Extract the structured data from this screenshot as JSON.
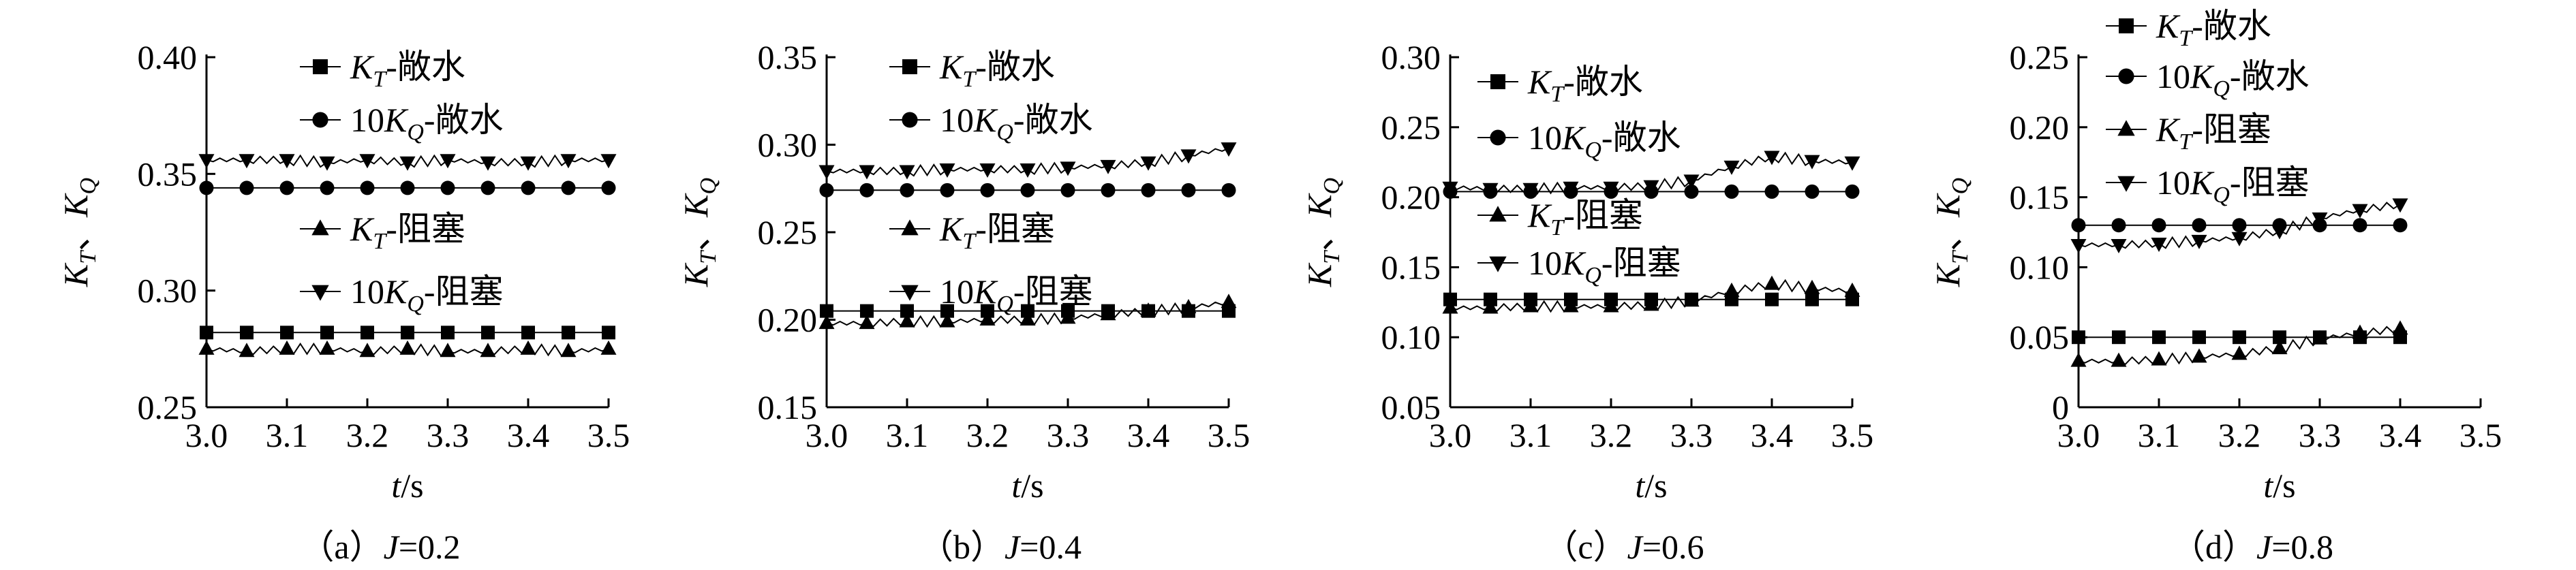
{
  "figure": {
    "series_defs": [
      {
        "name": "K_T-敞水",
        "main": "K",
        "sub": "T",
        "suffix": "-敞水",
        "marker": "square"
      },
      {
        "name": "10K_Q-敞水",
        "prefix": "10",
        "main": "K",
        "sub": "Q",
        "suffix": "-敞水",
        "marker": "circle"
      },
      {
        "name": "K_T-阻塞",
        "main": "K",
        "sub": "T",
        "suffix": "-阻塞",
        "marker": "triangle-up"
      },
      {
        "name": "10K_Q-阻塞",
        "prefix": "10",
        "main": "K",
        "sub": "Q",
        "suffix": "-阻塞",
        "marker": "triangle-down"
      }
    ],
    "ylabel_parts": {
      "k": "K",
      "t": "T",
      "sep": "、",
      "q": "Q"
    },
    "xlabel_parts": {
      "t": "t",
      "unit": "/s"
    }
  },
  "chart_data": [
    {
      "type": "line",
      "caption_prefix": "（a）",
      "caption_var": "J",
      "caption_value": "=0.2",
      "xlim": [
        3.0,
        3.5
      ],
      "ylim": [
        0.25,
        0.4
      ],
      "xticks": [
        "3.0",
        "3.1",
        "3.2",
        "3.3",
        "3.4",
        "3.5"
      ],
      "yticks": [
        "0.25",
        "0.30",
        "0.35",
        "0.40"
      ],
      "x": [
        3.0,
        3.05,
        3.1,
        3.15,
        3.2,
        3.25,
        3.3,
        3.35,
        3.4,
        3.45,
        3.5
      ],
      "series": [
        {
          "name": "K_T-敞水",
          "values": [
            0.282,
            0.282,
            0.282,
            0.282,
            0.282,
            0.282,
            0.282,
            0.282,
            0.282,
            0.282,
            0.282
          ]
        },
        {
          "name": "10K_Q-敞水",
          "values": [
            0.344,
            0.344,
            0.344,
            0.344,
            0.344,
            0.344,
            0.344,
            0.344,
            0.344,
            0.344,
            0.344
          ]
        },
        {
          "name": "K_T-阻塞",
          "values": [
            0.275,
            0.274,
            0.275,
            0.275,
            0.274,
            0.275,
            0.274,
            0.274,
            0.275,
            0.274,
            0.275
          ]
        },
        {
          "name": "10K_Q-阻塞",
          "values": [
            0.356,
            0.356,
            0.356,
            0.355,
            0.356,
            0.355,
            0.356,
            0.355,
            0.355,
            0.356,
            0.356
          ]
        }
      ]
    },
    {
      "type": "line",
      "caption_prefix": "（b）",
      "caption_var": "J",
      "caption_value": "=0.4",
      "xlim": [
        3.0,
        3.5
      ],
      "ylim": [
        0.15,
        0.35
      ],
      "xticks": [
        "3.0",
        "3.1",
        "3.2",
        "3.3",
        "3.4",
        "3.5"
      ],
      "yticks": [
        "0.15",
        "0.20",
        "0.25",
        "0.30",
        "0.35"
      ],
      "x": [
        3.0,
        3.05,
        3.1,
        3.15,
        3.2,
        3.25,
        3.3,
        3.35,
        3.4,
        3.45,
        3.5
      ],
      "series": [
        {
          "name": "K_T-敞水",
          "values": [
            0.205,
            0.205,
            0.205,
            0.205,
            0.205,
            0.205,
            0.205,
            0.205,
            0.205,
            0.205,
            0.205
          ]
        },
        {
          "name": "10K_Q-敞水",
          "values": [
            0.274,
            0.274,
            0.274,
            0.274,
            0.274,
            0.274,
            0.274,
            0.274,
            0.274,
            0.274,
            0.274
          ]
        },
        {
          "name": "K_T-阻塞",
          "values": [
            0.198,
            0.198,
            0.199,
            0.199,
            0.2,
            0.2,
            0.201,
            0.203,
            0.205,
            0.207,
            0.21
          ]
        },
        {
          "name": "10K_Q-阻塞",
          "values": [
            0.285,
            0.285,
            0.285,
            0.286,
            0.286,
            0.286,
            0.287,
            0.288,
            0.29,
            0.294,
            0.298
          ]
        }
      ]
    },
    {
      "type": "line",
      "caption_prefix": "（c）",
      "caption_var": "J",
      "caption_value": "=0.6",
      "xlim": [
        3.0,
        3.5
      ],
      "ylim": [
        0.05,
        0.3
      ],
      "xticks": [
        "3.0",
        "3.1",
        "3.2",
        "3.3",
        "3.4",
        "3.5"
      ],
      "yticks": [
        "0.05",
        "0.10",
        "0.15",
        "0.20",
        "0.25",
        "0.30"
      ],
      "x": [
        3.0,
        3.05,
        3.1,
        3.15,
        3.2,
        3.25,
        3.3,
        3.35,
        3.4,
        3.45,
        3.5
      ],
      "series": [
        {
          "name": "K_T-敞水",
          "values": [
            0.127,
            0.127,
            0.127,
            0.127,
            0.127,
            0.127,
            0.127,
            0.127,
            0.127,
            0.127,
            0.127
          ]
        },
        {
          "name": "10K_Q-敞水",
          "values": [
            0.204,
            0.204,
            0.204,
            0.204,
            0.204,
            0.204,
            0.204,
            0.204,
            0.204,
            0.204,
            0.204
          ]
        },
        {
          "name": "K_T-阻塞",
          "values": [
            0.121,
            0.121,
            0.122,
            0.122,
            0.122,
            0.123,
            0.126,
            0.133,
            0.138,
            0.135,
            0.133
          ]
        },
        {
          "name": "10K_Q-阻塞",
          "values": [
            0.207,
            0.206,
            0.206,
            0.207,
            0.207,
            0.208,
            0.212,
            0.222,
            0.229,
            0.226,
            0.225
          ]
        }
      ]
    },
    {
      "type": "line",
      "caption_prefix": "（d）",
      "caption_var": "J",
      "caption_value": "=0.8",
      "xlim": [
        3.0,
        3.5
      ],
      "ylim": [
        0,
        0.25
      ],
      "xticks": [
        "3.0",
        "3.1",
        "3.2",
        "3.3",
        "3.4",
        "3.5"
      ],
      "yticks": [
        "0",
        "0.05",
        "0.10",
        "0.15",
        "0.20",
        "0.25"
      ],
      "x": [
        3.0,
        3.05,
        3.1,
        3.15,
        3.2,
        3.25,
        3.3,
        3.35,
        3.4
      ],
      "series": [
        {
          "name": "K_T-敞水",
          "values": [
            0.05,
            0.05,
            0.05,
            0.05,
            0.05,
            0.05,
            0.05,
            0.05,
            0.05
          ]
        },
        {
          "name": "10K_Q-敞水",
          "values": [
            0.13,
            0.13,
            0.13,
            0.13,
            0.13,
            0.13,
            0.13,
            0.13,
            0.13
          ]
        },
        {
          "name": "K_T-阻塞",
          "values": [
            0.033,
            0.033,
            0.034,
            0.036,
            0.038,
            0.042,
            0.049,
            0.053,
            0.056
          ]
        },
        {
          "name": "10K_Q-阻塞",
          "values": [
            0.116,
            0.116,
            0.117,
            0.119,
            0.121,
            0.126,
            0.135,
            0.141,
            0.145
          ]
        }
      ]
    }
  ]
}
